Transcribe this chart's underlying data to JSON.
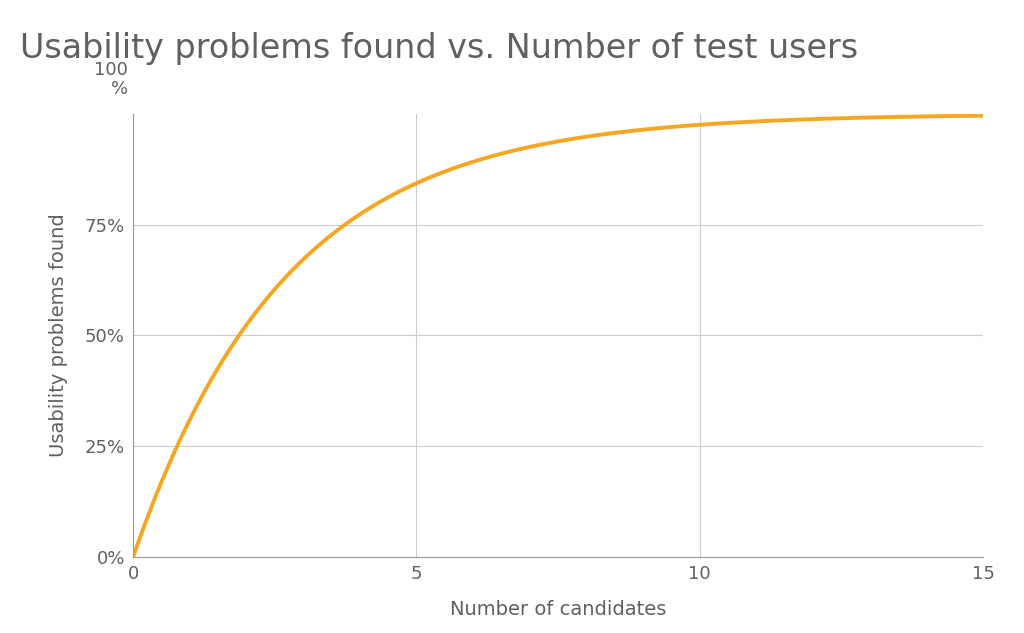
{
  "title": "Usability problems found vs. Number of test users",
  "xlabel": "Number of candidates",
  "ylabel": "Usability problems found",
  "line_color": "#F5A623",
  "line_width": 2.8,
  "background_color": "#ffffff",
  "xlim": [
    0,
    15
  ],
  "ylim": [
    0,
    1.0
  ],
  "xticks": [
    0,
    5,
    10,
    15
  ],
  "yticks": [
    0,
    0.25,
    0.5,
    0.75
  ],
  "ytick_labels": [
    "0%",
    "25%",
    "50%",
    "75%"
  ],
  "grid_color": "#cccccc",
  "title_fontsize": 24,
  "label_fontsize": 14,
  "tick_fontsize": 13,
  "title_color": "#606060",
  "tick_color": "#606060",
  "label_color": "#606060",
  "p": 0.31
}
